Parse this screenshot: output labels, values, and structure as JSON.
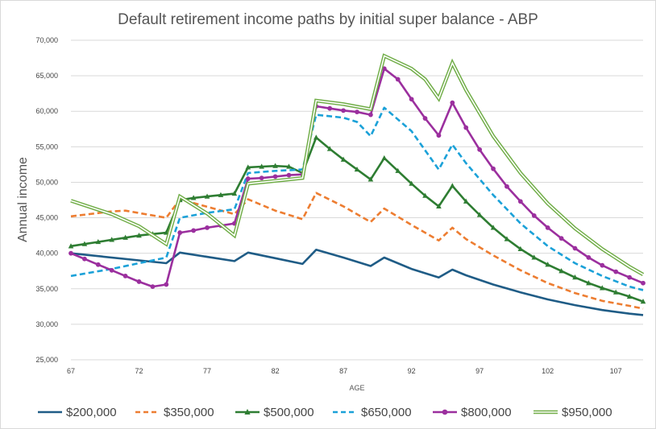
{
  "chart_data": {
    "type": "line",
    "title": "Default retirement income paths by initial super balance - ABP",
    "xlabel": "AGE",
    "ylabel": "Annual income",
    "xlim": [
      67,
      109
    ],
    "ylim": [
      25000,
      70000
    ],
    "x_ticks": [
      67,
      72,
      77,
      82,
      87,
      92,
      97,
      102,
      107
    ],
    "y_ticks": [
      25000,
      30000,
      35000,
      40000,
      45000,
      50000,
      55000,
      60000,
      65000,
      70000
    ],
    "y_tick_labels": [
      "25,000",
      "30,000",
      "35,000",
      "40,000",
      "45,000",
      "50,000",
      "55,000",
      "60,000",
      "65,000",
      "70,000"
    ],
    "grid": true,
    "legend_position": "bottom",
    "series": [
      {
        "name": "$200,000",
        "color": "#1f5c86",
        "style": "solid",
        "points": [
          [
            67,
            40000
          ],
          [
            72,
            39000
          ],
          [
            74,
            38600
          ],
          [
            75,
            40100
          ],
          [
            79,
            38900
          ],
          [
            80,
            40100
          ],
          [
            82,
            39300
          ],
          [
            84,
            38500
          ],
          [
            85,
            40500
          ],
          [
            87,
            39400
          ],
          [
            89,
            38200
          ],
          [
            90,
            39400
          ],
          [
            92,
            37800
          ],
          [
            94,
            36600
          ],
          [
            95,
            37700
          ],
          [
            96,
            36900
          ],
          [
            98,
            35600
          ],
          [
            100,
            34500
          ],
          [
            102,
            33500
          ],
          [
            104,
            32700
          ],
          [
            106,
            32000
          ],
          [
            108,
            31500
          ],
          [
            109,
            31300
          ]
        ]
      },
      {
        "name": "$350,000",
        "color": "#ed7d31",
        "style": "dashed",
        "points": [
          [
            67,
            45200
          ],
          [
            70,
            45900
          ],
          [
            71,
            46000
          ],
          [
            74,
            45000
          ],
          [
            75,
            47600
          ],
          [
            79,
            45500
          ],
          [
            80,
            47600
          ],
          [
            82,
            46000
          ],
          [
            84,
            44800
          ],
          [
            85,
            48500
          ],
          [
            87,
            46600
          ],
          [
            89,
            44400
          ],
          [
            90,
            46300
          ],
          [
            92,
            44000
          ],
          [
            94,
            41800
          ],
          [
            95,
            43600
          ],
          [
            96,
            42000
          ],
          [
            98,
            39700
          ],
          [
            100,
            37600
          ],
          [
            102,
            35800
          ],
          [
            104,
            34400
          ],
          [
            106,
            33300
          ],
          [
            108,
            32600
          ],
          [
            109,
            32200
          ]
        ]
      },
      {
        "name": "$500,000",
        "color": "#2e7d32",
        "style": "solid-triangle",
        "points": [
          [
            67,
            41000
          ],
          [
            68,
            41300
          ],
          [
            69,
            41600
          ],
          [
            70,
            41900
          ],
          [
            71,
            42200
          ],
          [
            72,
            42500
          ],
          [
            73,
            42700
          ],
          [
            74,
            42900
          ],
          [
            75,
            47500
          ],
          [
            76,
            47800
          ],
          [
            77,
            48000
          ],
          [
            78,
            48200
          ],
          [
            79,
            48400
          ],
          [
            80,
            52100
          ],
          [
            81,
            52200
          ],
          [
            82,
            52300
          ],
          [
            83,
            52200
          ],
          [
            84,
            51300
          ],
          [
            85,
            56300
          ],
          [
            86,
            54700
          ],
          [
            87,
            53200
          ],
          [
            88,
            51800
          ],
          [
            89,
            50400
          ],
          [
            90,
            53400
          ],
          [
            91,
            51600
          ],
          [
            92,
            49800
          ],
          [
            93,
            48100
          ],
          [
            94,
            46600
          ],
          [
            95,
            49500
          ],
          [
            96,
            47300
          ],
          [
            97,
            45400
          ],
          [
            98,
            43600
          ],
          [
            99,
            42000
          ],
          [
            100,
            40600
          ],
          [
            101,
            39400
          ],
          [
            102,
            38400
          ],
          [
            103,
            37500
          ],
          [
            104,
            36600
          ],
          [
            105,
            35800
          ],
          [
            106,
            35100
          ],
          [
            107,
            34500
          ],
          [
            108,
            33900
          ],
          [
            109,
            33200
          ]
        ]
      },
      {
        "name": "$650,000",
        "color": "#1ba1d8",
        "style": "dashed",
        "points": [
          [
            67,
            36800
          ],
          [
            70,
            37800
          ],
          [
            72,
            38600
          ],
          [
            74,
            39400
          ],
          [
            75,
            45000
          ],
          [
            77,
            45700
          ],
          [
            79,
            46200
          ],
          [
            80,
            51300
          ],
          [
            82,
            51600
          ],
          [
            84,
            51800
          ],
          [
            85,
            59500
          ],
          [
            87,
            59100
          ],
          [
            88,
            58500
          ],
          [
            89,
            56500
          ],
          [
            90,
            60500
          ],
          [
            92,
            57200
          ],
          [
            93,
            54500
          ],
          [
            94,
            51800
          ],
          [
            95,
            55300
          ],
          [
            96,
            52700
          ],
          [
            98,
            48200
          ],
          [
            100,
            44200
          ],
          [
            102,
            41000
          ],
          [
            104,
            38600
          ],
          [
            106,
            36800
          ],
          [
            108,
            35300
          ],
          [
            109,
            34800
          ]
        ]
      },
      {
        "name": "$800,000",
        "color": "#9b2f9e",
        "style": "solid-circle",
        "points": [
          [
            67,
            40000
          ],
          [
            68,
            39200
          ],
          [
            69,
            38400
          ],
          [
            70,
            37600
          ],
          [
            71,
            36800
          ],
          [
            72,
            36000
          ],
          [
            73,
            35300
          ],
          [
            74,
            35600
          ],
          [
            75,
            42900
          ],
          [
            76,
            43200
          ],
          [
            77,
            43600
          ],
          [
            78,
            43900
          ],
          [
            79,
            44200
          ],
          [
            80,
            50500
          ],
          [
            81,
            50600
          ],
          [
            82,
            50800
          ],
          [
            83,
            51000
          ],
          [
            84,
            51100
          ],
          [
            85,
            60700
          ],
          [
            86,
            60400
          ],
          [
            87,
            60100
          ],
          [
            88,
            59900
          ],
          [
            89,
            59500
          ],
          [
            90,
            66000
          ],
          [
            91,
            64500
          ],
          [
            92,
            61700
          ],
          [
            93,
            59000
          ],
          [
            94,
            56600
          ],
          [
            95,
            61200
          ],
          [
            96,
            57700
          ],
          [
            97,
            54600
          ],
          [
            98,
            51900
          ],
          [
            99,
            49400
          ],
          [
            100,
            47300
          ],
          [
            101,
            45300
          ],
          [
            102,
            43600
          ],
          [
            103,
            42100
          ],
          [
            104,
            40700
          ],
          [
            105,
            39400
          ],
          [
            106,
            38300
          ],
          [
            107,
            37400
          ],
          [
            108,
            36600
          ],
          [
            109,
            35800
          ]
        ]
      },
      {
        "name": "$950,000",
        "color": "#70ad47",
        "style": "double",
        "points": [
          [
            67,
            47400
          ],
          [
            70,
            45500
          ],
          [
            72,
            43800
          ],
          [
            74,
            41300
          ],
          [
            75,
            48000
          ],
          [
            77,
            45600
          ],
          [
            79,
            42500
          ],
          [
            80,
            49800
          ],
          [
            82,
            50200
          ],
          [
            84,
            50600
          ],
          [
            85,
            61500
          ],
          [
            87,
            61000
          ],
          [
            89,
            60300
          ],
          [
            90,
            67800
          ],
          [
            92,
            66000
          ],
          [
            93,
            64500
          ],
          [
            94,
            61800
          ],
          [
            95,
            66800
          ],
          [
            96,
            63000
          ],
          [
            98,
            56500
          ],
          [
            100,
            51300
          ],
          [
            102,
            47000
          ],
          [
            104,
            43500
          ],
          [
            106,
            40600
          ],
          [
            108,
            38100
          ],
          [
            109,
            37000
          ]
        ]
      }
    ]
  }
}
